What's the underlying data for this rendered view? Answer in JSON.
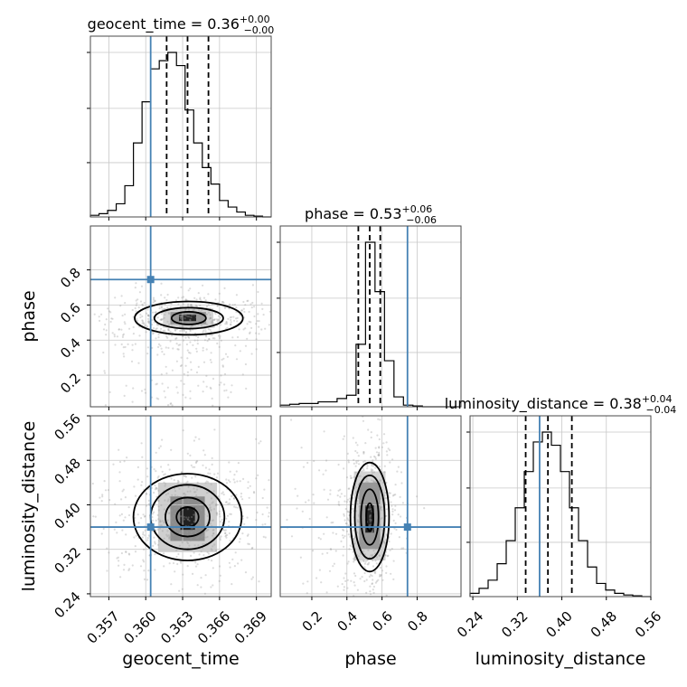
{
  "chart_data": {
    "type": "corner",
    "parameters": [
      "geocent_time",
      "phase",
      "luminosity_distance"
    ],
    "axis_labels": {
      "geocent_time": "geocent_time",
      "phase": "phase",
      "luminosity_distance": "luminosity_distance"
    },
    "ranges": {
      "geocent_time": [
        0.3555,
        0.3702
      ],
      "phase": [
        0.02,
        1.05
      ],
      "luminosity_distance": [
        0.235,
        0.56
      ]
    },
    "ticks": {
      "geocent_time": [
        0.357,
        0.36,
        0.363,
        0.366,
        0.369
      ],
      "phase": [
        0.2,
        0.4,
        0.6,
        0.8
      ],
      "luminosity_distance": [
        0.24,
        0.32,
        0.4,
        0.48,
        0.56
      ]
    },
    "tick_labels": {
      "geocent_time": [
        "0.357",
        "0.360",
        "0.363",
        "0.366",
        "0.369"
      ],
      "phase": [
        "0.2",
        "0.4",
        "0.6",
        "0.8"
      ],
      "luminosity_distance": [
        "0.24",
        "0.32",
        "0.40",
        "0.48",
        "0.56"
      ]
    },
    "titles": {
      "geocent_time": {
        "name": "geocent_time",
        "value": "0.36",
        "plus": "+0.00",
        "minus": "−0.00"
      },
      "phase": {
        "name": "phase",
        "value": "0.53",
        "plus": "+0.06",
        "minus": "−0.06"
      },
      "luminosity_distance": {
        "name": "luminosity_distance",
        "value": "0.38",
        "plus": "+0.04",
        "minus": "−0.04"
      }
    },
    "truths": {
      "geocent_time": 0.3604,
      "phase": 0.745,
      "luminosity_distance": 0.36
    },
    "quantiles": {
      "geocent_time": [
        0.3617,
        0.3634,
        0.3651
      ],
      "phase": [
        0.465,
        0.53,
        0.59
      ],
      "luminosity_distance": [
        0.335,
        0.375,
        0.418
      ]
    },
    "histograms": {
      "geocent_time": {
        "edges": [
          0.3555,
          0.3562,
          0.3569,
          0.3576,
          0.3583,
          0.359,
          0.3597,
          0.3604,
          0.3611,
          0.3618,
          0.3625,
          0.3632,
          0.3639,
          0.3646,
          0.3653,
          0.366,
          0.3667,
          0.3674,
          0.3681,
          0.3688,
          0.3695,
          0.3702
        ],
        "counts": [
          0.01,
          0.02,
          0.04,
          0.08,
          0.19,
          0.45,
          0.7,
          0.9,
          0.95,
          1.0,
          0.92,
          0.65,
          0.45,
          0.3,
          0.2,
          0.1,
          0.06,
          0.03,
          0.01,
          0.005,
          0.0
        ]
      },
      "phase": {
        "edges": [
          0.02,
          0.074,
          0.128,
          0.182,
          0.236,
          0.29,
          0.344,
          0.398,
          0.452,
          0.506,
          0.56,
          0.614,
          0.668,
          0.722,
          0.776,
          0.83,
          0.884,
          0.938,
          0.992,
          1.046
        ],
        "counts": [
          0.01,
          0.015,
          0.02,
          0.02,
          0.03,
          0.03,
          0.05,
          0.07,
          0.38,
          1.0,
          0.7,
          0.28,
          0.06,
          0.01,
          0.005,
          0.0,
          0.0,
          0.0,
          0.0
        ]
      },
      "luminosity_distance": {
        "edges": [
          0.235,
          0.25125,
          0.2675,
          0.28375,
          0.3,
          0.31625,
          0.3325,
          0.34875,
          0.365,
          0.38125,
          0.3975,
          0.41375,
          0.43,
          0.44625,
          0.4625,
          0.47875,
          0.495,
          0.51125,
          0.5275,
          0.54375,
          0.56
        ],
        "counts": [
          0.02,
          0.05,
          0.1,
          0.2,
          0.34,
          0.54,
          0.76,
          0.94,
          1.0,
          0.92,
          0.76,
          0.54,
          0.34,
          0.18,
          0.08,
          0.04,
          0.02,
          0.01,
          0.005,
          0.0
        ]
      }
    },
    "densities_2d": [
      {
        "x": "geocent_time",
        "y": "phase",
        "center": [
          0.3635,
          0.525
        ],
        "contours": [
          {
            "rx": 0.0014,
            "ry": 0.036
          },
          {
            "rx": 0.0028,
            "ry": 0.06
          },
          {
            "rx": 0.0044,
            "ry": 0.095
          }
        ],
        "peak_cells": [
          {
            "x0": 0.3627,
            "x1": 0.3641,
            "y0": 0.508,
            "y1": 0.545,
            "level": 0.95
          },
          {
            "x0": 0.362,
            "x1": 0.3649,
            "y0": 0.49,
            "y1": 0.56,
            "level": 0.45
          },
          {
            "x0": 0.3614,
            "x1": 0.3655,
            "y0": 0.47,
            "y1": 0.58,
            "level": 0.2
          }
        ]
      },
      {
        "x": "geocent_time",
        "y": "luminosity_distance",
        "center": [
          0.3634,
          0.378
        ],
        "contours": [
          {
            "rx": 0.0009,
            "ry": 0.018
          },
          {
            "rx": 0.0018,
            "ry": 0.035
          },
          {
            "rx": 0.003,
            "ry": 0.058
          },
          {
            "rx": 0.0044,
            "ry": 0.078
          }
        ],
        "peak_cells": [
          {
            "x0": 0.3628,
            "x1": 0.364,
            "y0": 0.355,
            "y1": 0.395,
            "level": 0.95
          },
          {
            "x0": 0.362,
            "x1": 0.3648,
            "y0": 0.335,
            "y1": 0.415,
            "level": 0.5
          },
          {
            "x0": 0.361,
            "x1": 0.3658,
            "y0": 0.315,
            "y1": 0.44,
            "level": 0.22
          }
        ]
      },
      {
        "x": "phase",
        "y": "luminosity_distance",
        "center": [
          0.53,
          0.378
        ],
        "contours": [
          {
            "rx": 0.02,
            "ry": 0.025
          },
          {
            "rx": 0.05,
            "ry": 0.05
          },
          {
            "rx": 0.085,
            "ry": 0.075
          },
          {
            "rx": 0.11,
            "ry": 0.098
          }
        ],
        "peak_cells": [
          {
            "x0": 0.505,
            "x1": 0.555,
            "y0": 0.35,
            "y1": 0.4,
            "level": 0.95
          },
          {
            "x0": 0.47,
            "x1": 0.59,
            "y0": 0.32,
            "y1": 0.44,
            "level": 0.45
          },
          {
            "x0": 0.44,
            "x1": 0.62,
            "y0": 0.3,
            "y1": 0.46,
            "level": 0.2
          }
        ]
      }
    ]
  }
}
